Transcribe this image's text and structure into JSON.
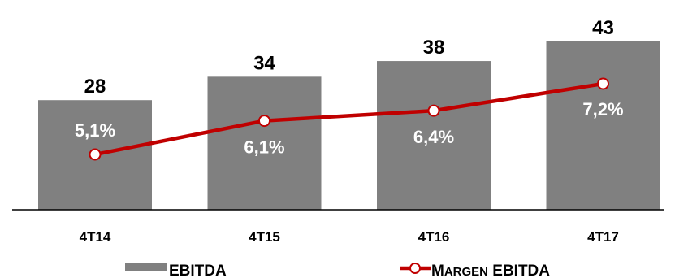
{
  "chart_data": {
    "type": "bar",
    "categories": [
      "4T14",
      "4T15",
      "4T16",
      "4T17"
    ],
    "series": [
      {
        "name": "EBITDA",
        "type": "bar",
        "values": [
          28,
          34,
          38,
          43
        ],
        "labels": [
          "28",
          "34",
          "38",
          "43"
        ],
        "color": "#808080"
      },
      {
        "name": "Margen EBITDA",
        "type": "line",
        "values": [
          5.1,
          6.1,
          6.4,
          7.2
        ],
        "labels": [
          "5,1%",
          "6,1%",
          "6,4%",
          "7,2%"
        ],
        "color": "#c00000"
      }
    ],
    "legend": {
      "position": "bottom",
      "bar_label": "EBITDA",
      "line_label_first": "M",
      "line_label_rest": "ARGEN",
      "line_label_tail": " EBITDA"
    },
    "grid": false
  }
}
